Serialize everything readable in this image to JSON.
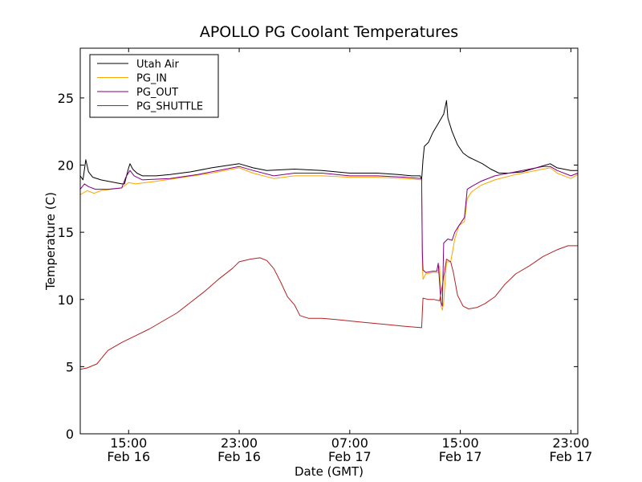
{
  "chart_data": {
    "type": "line",
    "title": "APOLLO PG Coolant Temperatures",
    "xlabel": "Date (GMT)",
    "ylabel": "Temperature (C)",
    "x_unit": "hours since Feb 16 00:00 GMT",
    "xlim": [
      11.5,
      47.5
    ],
    "ylim": [
      0,
      28.7
    ],
    "y_ticks": [
      0,
      5,
      10,
      15,
      20,
      25
    ],
    "x_ticks": [
      {
        "x": 15,
        "time": "15:00",
        "date": "Feb 16"
      },
      {
        "x": 23,
        "time": "23:00",
        "date": "Feb 16"
      },
      {
        "x": 31,
        "time": "07:00",
        "date": "Feb 17"
      },
      {
        "x": 39,
        "time": "15:00",
        "date": "Feb 17"
      },
      {
        "x": 47,
        "time": "23:00",
        "date": "Feb 17"
      }
    ],
    "grid": false,
    "legend_position": "top-left",
    "series": [
      {
        "name": "Utah Air",
        "color": "#000000",
        "points": [
          [
            11.5,
            19.2
          ],
          [
            11.7,
            18.9
          ],
          [
            11.9,
            20.4
          ],
          [
            12.1,
            19.5
          ],
          [
            12.4,
            19.1
          ],
          [
            13.0,
            18.9
          ],
          [
            14.5,
            18.6
          ],
          [
            14.7,
            18.6
          ],
          [
            15.0,
            19.8
          ],
          [
            15.1,
            20.1
          ],
          [
            15.3,
            19.7
          ],
          [
            15.6,
            19.4
          ],
          [
            16.0,
            19.2
          ],
          [
            17.0,
            19.2
          ],
          [
            18.0,
            19.3
          ],
          [
            19.5,
            19.5
          ],
          [
            21.0,
            19.8
          ],
          [
            23.0,
            20.1
          ],
          [
            24.0,
            19.8
          ],
          [
            25.0,
            19.6
          ],
          [
            27.0,
            19.7
          ],
          [
            29.0,
            19.6
          ],
          [
            31.0,
            19.4
          ],
          [
            33.0,
            19.4
          ],
          [
            34.5,
            19.3
          ],
          [
            35.5,
            19.2
          ],
          [
            36.1,
            19.2
          ],
          [
            36.2,
            18.9
          ],
          [
            36.3,
            20.4
          ],
          [
            36.4,
            21.4
          ],
          [
            36.7,
            21.7
          ],
          [
            37.0,
            22.4
          ],
          [
            37.4,
            23.1
          ],
          [
            37.8,
            23.8
          ],
          [
            38.0,
            24.8
          ],
          [
            38.1,
            23.5
          ],
          [
            38.4,
            22.5
          ],
          [
            38.8,
            21.5
          ],
          [
            39.2,
            20.9
          ],
          [
            39.6,
            20.6
          ],
          [
            40.0,
            20.4
          ],
          [
            40.6,
            20.1
          ],
          [
            41.2,
            19.7
          ],
          [
            41.8,
            19.4
          ],
          [
            42.5,
            19.4
          ],
          [
            43.5,
            19.5
          ],
          [
            44.5,
            19.8
          ],
          [
            45.5,
            20.1
          ],
          [
            46.0,
            19.8
          ],
          [
            47.0,
            19.6
          ],
          [
            47.5,
            19.6
          ]
        ]
      },
      {
        "name": "PG_IN",
        "color": "#ffa500",
        "points": [
          [
            11.5,
            17.8
          ],
          [
            12.0,
            18.1
          ],
          [
            12.5,
            17.9
          ],
          [
            13.0,
            18.1
          ],
          [
            14.5,
            18.3
          ],
          [
            15.0,
            18.7
          ],
          [
            15.5,
            18.6
          ],
          [
            17.0,
            18.8
          ],
          [
            19.0,
            19.1
          ],
          [
            21.0,
            19.4
          ],
          [
            23.0,
            19.8
          ],
          [
            24.0,
            19.4
          ],
          [
            25.5,
            19.0
          ],
          [
            27.0,
            19.2
          ],
          [
            29.0,
            19.2
          ],
          [
            31.0,
            19.1
          ],
          [
            33.0,
            19.1
          ],
          [
            35.0,
            19.0
          ],
          [
            36.2,
            18.9
          ],
          [
            36.25,
            12.5
          ],
          [
            36.3,
            11.5
          ],
          [
            36.5,
            11.9
          ],
          [
            37.0,
            12.0
          ],
          [
            37.4,
            12.0
          ],
          [
            37.5,
            12.5
          ],
          [
            37.6,
            9.5
          ],
          [
            37.7,
            9.2
          ],
          [
            37.8,
            9.8
          ],
          [
            38.0,
            12.8
          ],
          [
            38.3,
            12.8
          ],
          [
            38.6,
            14.5
          ],
          [
            38.9,
            15.5
          ],
          [
            39.3,
            15.8
          ],
          [
            39.5,
            17.5
          ],
          [
            39.8,
            18.0
          ],
          [
            40.5,
            18.5
          ],
          [
            41.5,
            18.9
          ],
          [
            43.0,
            19.3
          ],
          [
            45.0,
            19.7
          ],
          [
            45.5,
            19.8
          ],
          [
            46.0,
            19.4
          ],
          [
            47.0,
            19.0
          ],
          [
            47.5,
            19.3
          ]
        ]
      },
      {
        "name": "PG_OUT",
        "color": "#800080",
        "points": [
          [
            11.5,
            18.2
          ],
          [
            11.8,
            18.6
          ],
          [
            12.1,
            18.4
          ],
          [
            12.6,
            18.2
          ],
          [
            13.5,
            18.2
          ],
          [
            14.5,
            18.3
          ],
          [
            14.8,
            19.1
          ],
          [
            15.1,
            19.6
          ],
          [
            15.4,
            19.2
          ],
          [
            16.0,
            18.9
          ],
          [
            18.0,
            19.0
          ],
          [
            20.0,
            19.3
          ],
          [
            23.0,
            19.9
          ],
          [
            24.0,
            19.6
          ],
          [
            25.5,
            19.2
          ],
          [
            27.0,
            19.4
          ],
          [
            29.0,
            19.4
          ],
          [
            31.0,
            19.2
          ],
          [
            33.0,
            19.2
          ],
          [
            35.0,
            19.1
          ],
          [
            36.2,
            19.0
          ],
          [
            36.25,
            13.5
          ],
          [
            36.3,
            12.2
          ],
          [
            36.5,
            12.0
          ],
          [
            37.0,
            12.1
          ],
          [
            37.3,
            12.1
          ],
          [
            37.4,
            12.7
          ],
          [
            37.6,
            9.8
          ],
          [
            37.7,
            9.5
          ],
          [
            37.8,
            14.2
          ],
          [
            38.1,
            14.5
          ],
          [
            38.4,
            14.4
          ],
          [
            38.6,
            15.0
          ],
          [
            38.9,
            15.5
          ],
          [
            39.3,
            16.1
          ],
          [
            39.5,
            18.2
          ],
          [
            39.8,
            18.4
          ],
          [
            40.5,
            18.8
          ],
          [
            41.5,
            19.2
          ],
          [
            43.0,
            19.5
          ],
          [
            45.0,
            19.9
          ],
          [
            45.5,
            19.9
          ],
          [
            46.0,
            19.6
          ],
          [
            47.0,
            19.2
          ],
          [
            47.5,
            19.4
          ]
        ]
      },
      {
        "name": "PG_SHUTTLE",
        "color": "#b22222",
        "points": [
          [
            11.5,
            4.8
          ],
          [
            12.0,
            4.9
          ],
          [
            12.7,
            5.2
          ],
          [
            13.5,
            6.2
          ],
          [
            14.5,
            6.8
          ],
          [
            15.5,
            7.3
          ],
          [
            16.5,
            7.8
          ],
          [
            17.5,
            8.4
          ],
          [
            18.5,
            9.0
          ],
          [
            19.5,
            9.8
          ],
          [
            20.5,
            10.6
          ],
          [
            21.5,
            11.5
          ],
          [
            22.5,
            12.3
          ],
          [
            23.0,
            12.8
          ],
          [
            23.8,
            13.0
          ],
          [
            24.5,
            13.1
          ],
          [
            25.0,
            12.9
          ],
          [
            25.5,
            12.3
          ],
          [
            26.0,
            11.3
          ],
          [
            26.5,
            10.2
          ],
          [
            27.0,
            9.6
          ],
          [
            27.4,
            8.8
          ],
          [
            28.0,
            8.6
          ],
          [
            29.0,
            8.6
          ],
          [
            30.0,
            8.5
          ],
          [
            31.0,
            8.4
          ],
          [
            32.0,
            8.3
          ],
          [
            33.0,
            8.2
          ],
          [
            34.0,
            8.1
          ],
          [
            35.0,
            8.0
          ],
          [
            36.2,
            7.9
          ],
          [
            36.3,
            10.1
          ],
          [
            36.7,
            10.0
          ],
          [
            37.1,
            10.0
          ],
          [
            37.5,
            9.9
          ],
          [
            37.7,
            11.0
          ],
          [
            38.0,
            13.0
          ],
          [
            38.3,
            12.8
          ],
          [
            38.5,
            12.0
          ],
          [
            38.8,
            10.3
          ],
          [
            39.2,
            9.5
          ],
          [
            39.6,
            9.3
          ],
          [
            40.2,
            9.4
          ],
          [
            40.8,
            9.7
          ],
          [
            41.5,
            10.2
          ],
          [
            42.2,
            11.1
          ],
          [
            43.0,
            11.9
          ],
          [
            44.0,
            12.5
          ],
          [
            45.0,
            13.2
          ],
          [
            46.0,
            13.7
          ],
          [
            46.8,
            14.0
          ],
          [
            47.5,
            14.0
          ]
        ]
      }
    ]
  }
}
